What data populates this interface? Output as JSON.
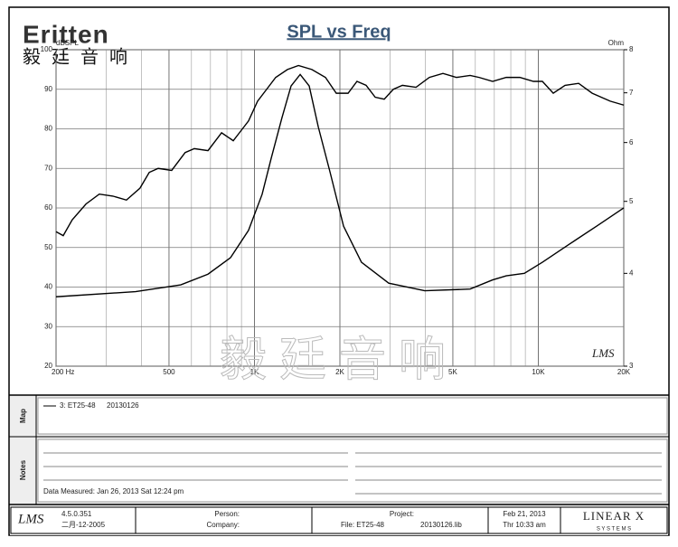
{
  "logo": {
    "brand": "Eritten",
    "chinese": "毅廷音响"
  },
  "watermark": "毅廷音响",
  "chart_data": {
    "type": "line",
    "title": "SPL vs Freq",
    "ylabel": "dBSPL",
    "y2label": "Ohm",
    "annotation": "LMS",
    "xscale": "log",
    "y2scale": "log",
    "grid": true,
    "xlim": [
      200,
      20000
    ],
    "ylim": [
      20,
      100
    ],
    "y2lim": [
      3,
      8
    ],
    "xticks": [
      {
        "value": 200,
        "label": "200  Hz"
      },
      500,
      {
        "value": 1000,
        "label": "1K"
      },
      {
        "value": 2000,
        "label": "2K"
      },
      {
        "value": 5000,
        "label": "5K"
      },
      {
        "value": 10000,
        "label": "10K"
      },
      {
        "value": 20000,
        "label": "20K"
      }
    ],
    "xminorticks": [
      300,
      400,
      600,
      700,
      800,
      900,
      3000,
      4000,
      6000,
      7000,
      8000,
      9000
    ],
    "yticks": [
      20,
      30,
      40,
      50,
      60,
      70,
      80,
      90,
      100
    ],
    "y2ticks": [
      3,
      4,
      5,
      6,
      7,
      8
    ],
    "series": [
      {
        "color": "#000000",
        "x": [
          200,
          212,
          228,
          255,
          284,
          317,
          354,
          395,
          426,
          458,
          511,
          570,
          614,
          686,
          766,
          842,
          885,
          953,
          1026,
          1104,
          1188,
          1307,
          1429,
          1593,
          1779,
          1942,
          2137,
          2297,
          2473,
          2663,
          2866,
          3085,
          3321,
          3708,
          4132,
          4614,
          5151,
          5752,
          6185,
          6903,
          7709,
          8608,
          9612,
          10335,
          11290,
          12420,
          13870,
          15480,
          17920,
          20000
        ],
        "values": [
          54,
          53,
          57,
          61,
          63.5,
          63,
          62,
          65,
          69,
          70,
          69.5,
          74,
          75,
          74.5,
          79,
          77,
          79,
          82,
          87,
          90,
          93,
          95,
          96,
          95,
          93,
          89,
          89,
          92,
          91,
          88,
          87.5,
          90,
          91,
          90.5,
          93,
          94,
          93,
          93.5,
          93,
          92,
          93,
          93,
          92,
          92,
          89,
          91,
          91.5,
          89,
          87,
          86
        ]
      },
      {
        "color": "#000000",
        "axis": "y2",
        "x": [
          200,
          381,
          550,
          686,
          824,
          953,
          1064,
          1145,
          1250,
          1346,
          1449,
          1559,
          1678,
          1845,
          2060,
          2382,
          2972,
          3980,
          5752,
          6903,
          7709,
          8930,
          10335,
          12880,
          16040,
          20000
        ],
        "values": [
          3.72,
          3.78,
          3.86,
          3.99,
          4.2,
          4.57,
          5.11,
          5.71,
          6.48,
          7.15,
          7.41,
          7.15,
          6.3,
          5.48,
          4.63,
          4.14,
          3.88,
          3.79,
          3.81,
          3.92,
          3.97,
          4.0,
          4.14,
          4.38,
          4.63,
          4.9
        ]
      }
    ]
  },
  "map": {
    "label": "Map",
    "entry": "3: ET25-48",
    "date": "20130126"
  },
  "notes": {
    "label": "Notes",
    "measured": "Data Measured: Jan 26, 2013  Sat 12:24 pm"
  },
  "footer": {
    "logo": "LMS",
    "version": "4.5.0.351",
    "build_date": "二月-12-2005",
    "person": "Person:",
    "company": "Company:",
    "project": "Project:",
    "file": "File: ET25-48",
    "lib": "20130126.lib",
    "date": "Feb 21, 2013",
    "time": "Thr 10:33 am",
    "brand": "LINEAR X",
    "brand_sub": "S Y S T E M S"
  }
}
